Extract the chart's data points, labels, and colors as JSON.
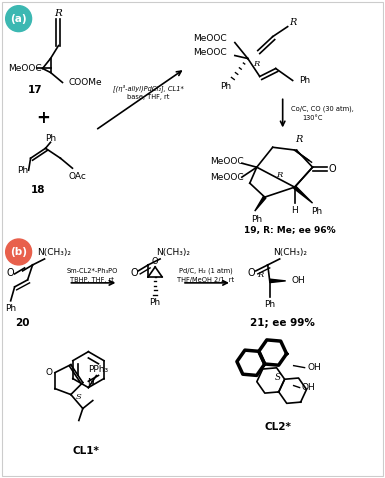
{
  "background_color": "#ffffff",
  "label_a": "(a)",
  "label_b": "(b)",
  "label_a_color": "#3cb8b2",
  "label_b_color": "#e8604c",
  "figsize": [
    3.85,
    4.78
  ],
  "dpi": 100,
  "compound_labels": {
    "c17": "17",
    "c18": "18",
    "c19": "19, R: Me; ee 96%",
    "c20": "20",
    "c21": "21; ee 99%",
    "CL1": "CL1*",
    "CL2": "CL2*"
  },
  "reagents": {
    "r1a": "[(η³-allyl)PdCl₂], CL1*",
    "r1b": "base, THF, rt",
    "r2a": "Co/C, CO (30 atm),",
    "r2b": "130°C",
    "r3a": "Sm-CL2*-Ph₃PO",
    "r3b": "TBHP, THF, rt",
    "r4a": "Pd/C, H₂ (1 atm)",
    "r4b": "THF/MeOH 2/1, rt"
  },
  "groups": {
    "MeOOC": "MeOOC",
    "COOMe": "COOMe",
    "OAc": "OAc",
    "Ph": "Ph",
    "NMe2": "N(CH₃)₂",
    "OH": "OH",
    "R": "R",
    "H": "H",
    "S": "S",
    "Rconf": "R",
    "O": "O",
    "N": "N",
    "PPh3": "PPh₃"
  }
}
